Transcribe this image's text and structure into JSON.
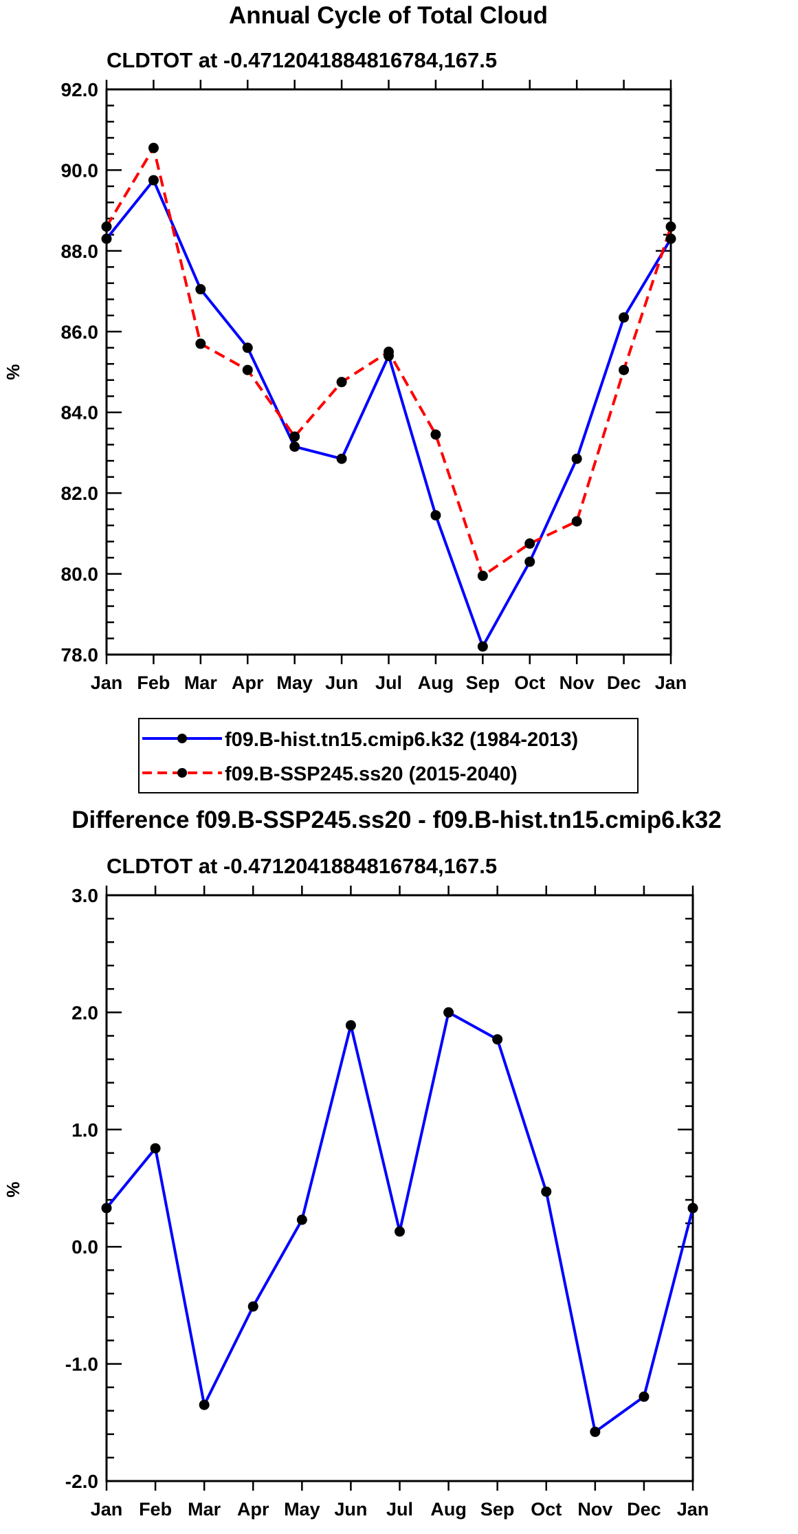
{
  "chart_data": [
    {
      "type": "line",
      "title": "Annual Cycle of Total Cloud",
      "subtitle": "CLDTOT at -0.4712041884816784,167.5",
      "xlabel": "",
      "ylabel": "%",
      "categories": [
        "Jan",
        "Feb",
        "Mar",
        "Apr",
        "May",
        "Jun",
        "Jul",
        "Aug",
        "Sep",
        "Oct",
        "Nov",
        "Dec",
        "Jan"
      ],
      "ylim": [
        78.0,
        92.0
      ],
      "yticks": [
        "78.0",
        "80.0",
        "82.0",
        "84.0",
        "86.0",
        "88.0",
        "90.0",
        "92.0"
      ],
      "grid": false,
      "legend_position": "bottom",
      "series": [
        {
          "name": "f09.B-hist.tn15.cmip6.k32 (1984-2013)",
          "color": "#0000ff",
          "dash": "solid",
          "values": [
            88.3,
            89.75,
            87.05,
            85.6,
            83.15,
            82.85,
            85.4,
            81.45,
            78.2,
            80.3,
            82.85,
            86.35,
            88.3
          ]
        },
        {
          "name": "f09.B-SSP245.ss20 (2015-2040)",
          "color": "#ff0000",
          "dash": "dashed",
          "values": [
            88.6,
            90.55,
            85.7,
            85.05,
            83.4,
            84.75,
            85.5,
            83.45,
            79.95,
            80.75,
            81.3,
            85.05,
            88.6
          ]
        }
      ]
    },
    {
      "type": "line",
      "title": "Difference f09.B-SSP245.ss20 - f09.B-hist.tn15.cmip6.k32",
      "subtitle": "CLDTOT at -0.4712041884816784,167.5",
      "xlabel": "",
      "ylabel": "%",
      "categories": [
        "Jan",
        "Feb",
        "Mar",
        "Apr",
        "May",
        "Jun",
        "Jul",
        "Aug",
        "Sep",
        "Oct",
        "Nov",
        "Dec",
        "Jan"
      ],
      "ylim": [
        -2.0,
        3.0
      ],
      "yticks": [
        "-2.0",
        "-1.0",
        "0.0",
        "1.0",
        "2.0",
        "3.0"
      ],
      "grid": false,
      "series": [
        {
          "name": "difference",
          "color": "#0000ff",
          "dash": "solid",
          "values": [
            0.33,
            0.84,
            -1.35,
            -0.51,
            0.23,
            1.89,
            0.13,
            2.0,
            1.77,
            0.47,
            -1.58,
            -1.28,
            0.33
          ]
        }
      ]
    }
  ]
}
